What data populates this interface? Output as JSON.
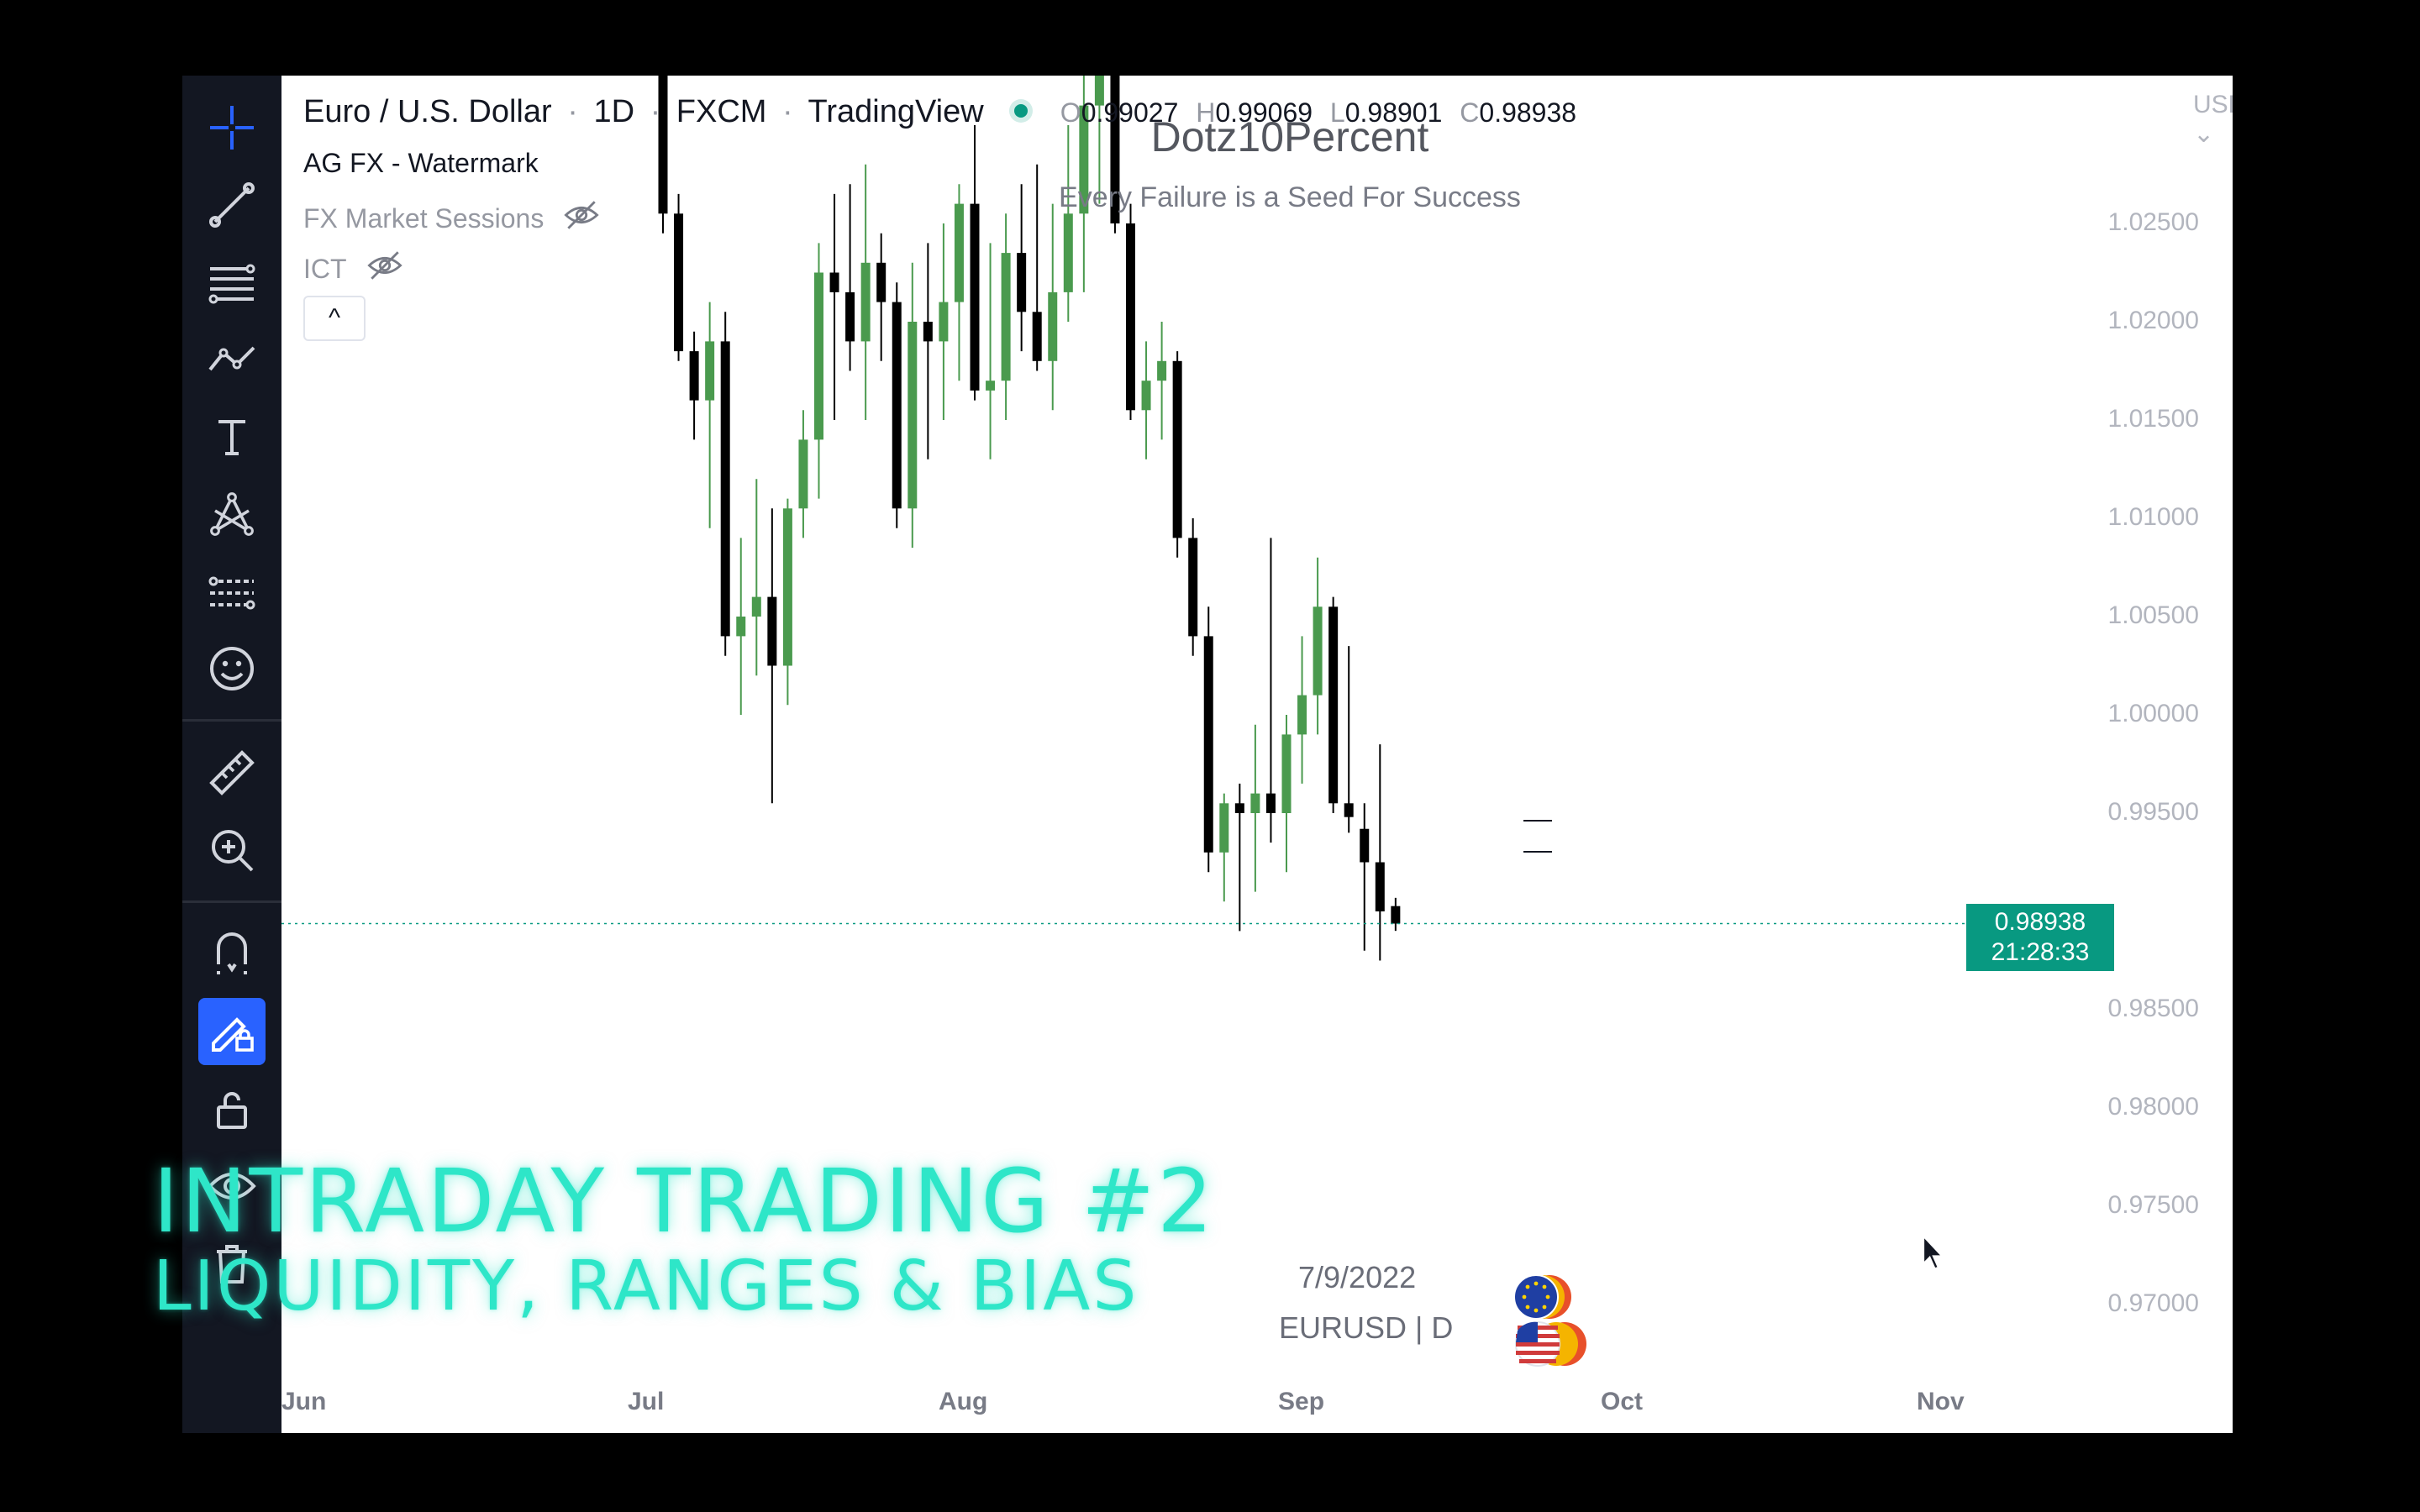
{
  "legend": {
    "symbol": "Euro / U.S. Dollar",
    "sep1": "·",
    "interval": "1D",
    "sep2": "·",
    "exchange": "FXCM",
    "sep3": "·",
    "source": "TradingView",
    "o_key": "O",
    "o_val": "0.99027",
    "h_key": "H",
    "h_val": "0.99069",
    "l_key": "L",
    "l_val": "0.98901",
    "c_key": "C",
    "c_val": "0.98938"
  },
  "indicators": [
    {
      "name": "AG FX - Watermark"
    },
    {
      "name": "FX Market Sessions"
    },
    {
      "name": "ICT"
    }
  ],
  "collapse_label": "^",
  "watermark": {
    "title": "Dotz10Percent",
    "subtitle": "Every Failure is a Seed For Success",
    "date": "7/9/2022",
    "symbol": "EURUSD | D"
  },
  "currency": "USD",
  "price_axis": [
    "1.02500",
    "1.02000",
    "1.01500",
    "1.01000",
    "1.00500",
    "1.00000",
    "0.99500",
    "0.98500",
    "0.98000",
    "0.97500",
    "0.97000"
  ],
  "last_price": {
    "price": "0.98938",
    "countdown": "21:28:33"
  },
  "time_axis": [
    "Jun",
    "Jul",
    "Aug",
    "Sep",
    "Oct",
    "Nov"
  ],
  "overlay": {
    "line1": "INTRADAY TRADING #2",
    "line2": "LIQUIDITY, RANGES & BIAS"
  },
  "colors": {
    "up": "#4a9a4e",
    "down": "#000000",
    "last_price": "#089981",
    "overlay_text": "#2ee6c8",
    "toolbar_bg": "#131722",
    "active_tool": "#2962ff"
  },
  "toolbar": [
    "crosshair-icon",
    "trendline-icon",
    "fib-icon",
    "pattern-icon",
    "text-icon",
    "node-icon",
    "forecast-icon",
    "emoji-icon",
    "ruler-icon",
    "zoom-icon",
    "magnet-icon",
    "lock-drawing-icon",
    "unlock-icon",
    "eye-icon",
    "trash-icon"
  ],
  "chart_data": {
    "type": "candlestick",
    "ylim": [
      0.966,
      1.029
    ],
    "candles": [
      {
        "o": 1.033,
        "h": 1.035,
        "l": 1.0245,
        "c": 1.0255
      },
      {
        "o": 1.0255,
        "h": 1.0265,
        "l": 1.018,
        "c": 1.0185
      },
      {
        "o": 1.0185,
        "h": 1.0195,
        "l": 1.014,
        "c": 1.016
      },
      {
        "o": 1.016,
        "h": 1.021,
        "l": 1.0095,
        "c": 1.019
      },
      {
        "o": 1.019,
        "h": 1.0205,
        "l": 1.003,
        "c": 1.004
      },
      {
        "o": 1.004,
        "h": 1.009,
        "l": 1.0,
        "c": 1.005
      },
      {
        "o": 1.005,
        "h": 1.012,
        "l": 1.002,
        "c": 1.006
      },
      {
        "o": 1.006,
        "h": 1.0105,
        "l": 0.9955,
        "c": 1.0025
      },
      {
        "o": 1.0025,
        "h": 1.011,
        "l": 1.0005,
        "c": 1.0105
      },
      {
        "o": 1.0105,
        "h": 1.0155,
        "l": 1.009,
        "c": 1.014
      },
      {
        "o": 1.014,
        "h": 1.024,
        "l": 1.011,
        "c": 1.0225
      },
      {
        "o": 1.0225,
        "h": 1.0265,
        "l": 1.015,
        "c": 1.0215
      },
      {
        "o": 1.0215,
        "h": 1.027,
        "l": 1.0175,
        "c": 1.019
      },
      {
        "o": 1.019,
        "h": 1.028,
        "l": 1.015,
        "c": 1.023
      },
      {
        "o": 1.023,
        "h": 1.0245,
        "l": 1.018,
        "c": 1.021
      },
      {
        "o": 1.021,
        "h": 1.022,
        "l": 1.0095,
        "c": 1.0105
      },
      {
        "o": 1.0105,
        "h": 1.023,
        "l": 1.0085,
        "c": 1.02
      },
      {
        "o": 1.02,
        "h": 1.024,
        "l": 1.013,
        "c": 1.019
      },
      {
        "o": 1.019,
        "h": 1.025,
        "l": 1.015,
        "c": 1.021
      },
      {
        "o": 1.021,
        "h": 1.027,
        "l": 1.017,
        "c": 1.026
      },
      {
        "o": 1.026,
        "h": 1.03,
        "l": 1.016,
        "c": 1.0165
      },
      {
        "o": 1.0165,
        "h": 1.024,
        "l": 1.013,
        "c": 1.017
      },
      {
        "o": 1.017,
        "h": 1.0255,
        "l": 1.015,
        "c": 1.0235
      },
      {
        "o": 1.0235,
        "h": 1.027,
        "l": 1.0185,
        "c": 1.0205
      },
      {
        "o": 1.0205,
        "h": 1.028,
        "l": 1.0175,
        "c": 1.018
      },
      {
        "o": 1.018,
        "h": 1.026,
        "l": 1.0155,
        "c": 1.0215
      },
      {
        "o": 1.0215,
        "h": 1.03,
        "l": 1.02,
        "c": 1.0255
      },
      {
        "o": 1.0255,
        "h": 1.033,
        "l": 1.0215,
        "c": 1.031
      },
      {
        "o": 1.031,
        "h": 1.036,
        "l": 1.026,
        "c": 1.035
      },
      {
        "o": 1.035,
        "h": 1.036,
        "l": 1.0245,
        "c": 1.025
      },
      {
        "o": 1.025,
        "h": 1.026,
        "l": 1.015,
        "c": 1.0155
      },
      {
        "o": 1.0155,
        "h": 1.019,
        "l": 1.013,
        "c": 1.017
      },
      {
        "o": 1.017,
        "h": 1.02,
        "l": 1.014,
        "c": 1.018
      },
      {
        "o": 1.018,
        "h": 1.0185,
        "l": 1.008,
        "c": 1.009
      },
      {
        "o": 1.009,
        "h": 1.01,
        "l": 1.003,
        "c": 1.004
      },
      {
        "o": 1.004,
        "h": 1.0055,
        "l": 0.992,
        "c": 0.993
      },
      {
        "o": 0.993,
        "h": 0.996,
        "l": 0.9905,
        "c": 0.9955
      },
      {
        "o": 0.9955,
        "h": 0.9965,
        "l": 0.989,
        "c": 0.995
      },
      {
        "o": 0.995,
        "h": 0.9995,
        "l": 0.991,
        "c": 0.996
      },
      {
        "o": 0.996,
        "h": 1.009,
        "l": 0.9935,
        "c": 0.995
      },
      {
        "o": 0.995,
        "h": 1.0,
        "l": 0.992,
        "c": 0.999
      },
      {
        "o": 0.999,
        "h": 1.004,
        "l": 0.9965,
        "c": 1.001
      },
      {
        "o": 1.001,
        "h": 1.008,
        "l": 0.999,
        "c": 1.0055
      },
      {
        "o": 1.0055,
        "h": 1.006,
        "l": 0.995,
        "c": 0.9955
      },
      {
        "o": 0.9955,
        "h": 1.0035,
        "l": 0.994,
        "c": 0.9948
      },
      {
        "o": 0.9942,
        "h": 0.9955,
        "l": 0.988,
        "c": 0.9925
      },
      {
        "o": 0.9925,
        "h": 0.9985,
        "l": 0.9875,
        "c": 0.99
      },
      {
        "o": 0.99027,
        "h": 0.99069,
        "l": 0.98901,
        "c": 0.98938
      }
    ]
  }
}
